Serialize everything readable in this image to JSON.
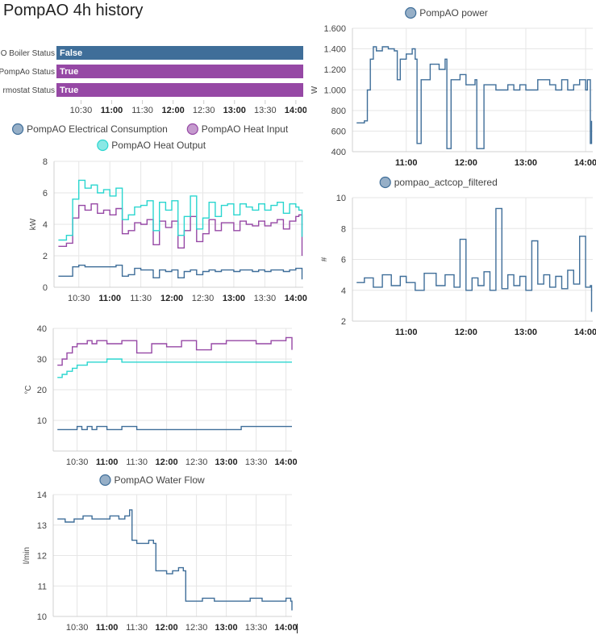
{
  "page": {
    "title": "PompAO 4h history"
  },
  "colors": {
    "blue": "#3f6e99",
    "purple": "#9648a5",
    "cyan": "#2ad6cf"
  },
  "status": {
    "rows": [
      {
        "label": "O Boiler Status",
        "value": "False",
        "color": "#3f6e99"
      },
      {
        "label": "PompAo Status",
        "value": "True",
        "color": "#9648a5"
      },
      {
        "label": "rmostat Status",
        "value": "True",
        "color": "#9648a5"
      }
    ],
    "x_ticks": [
      "10:30",
      "11:00",
      "11:30",
      "12:00",
      "12:30",
      "13:00",
      "13:30",
      "14:00"
    ]
  },
  "chart_data": [
    {
      "id": "energy",
      "type": "line",
      "legend": [
        "PompAO Electrical Consumption",
        "PompAO Heat Input",
        "PompAO Heat Output"
      ],
      "ylabel": "kW",
      "ylim": [
        0,
        8
      ],
      "yticks": [
        0,
        2,
        4,
        6,
        8
      ],
      "x_ticks": [
        "10:30",
        "11:00",
        "11:30",
        "12:00",
        "12:30",
        "13:00",
        "13:30",
        "14:00"
      ],
      "x_hours": [
        10.17,
        10.3,
        10.4,
        10.5,
        10.6,
        10.7,
        10.8,
        10.9,
        11.0,
        11.1,
        11.2,
        11.3,
        11.4,
        11.5,
        11.6,
        11.7,
        11.8,
        11.9,
        12.0,
        12.1,
        12.2,
        12.3,
        12.4,
        12.5,
        12.6,
        12.7,
        12.8,
        12.9,
        13.0,
        13.1,
        13.2,
        13.3,
        13.4,
        13.5,
        13.6,
        13.7,
        13.8,
        13.9,
        14.0,
        14.05,
        14.1
      ],
      "series": [
        {
          "name": "PompAO Electrical Consumption",
          "color": "#3f6e99",
          "values": [
            0.7,
            0.7,
            1.3,
            1.4,
            1.3,
            1.3,
            1.3,
            1.3,
            1.3,
            1.4,
            0.7,
            0.8,
            1.2,
            1.1,
            1.1,
            0.6,
            1.1,
            1.0,
            1.1,
            0.6,
            1.0,
            1.1,
            0.8,
            1.0,
            1.1,
            1.0,
            1.1,
            1.1,
            1.0,
            1.1,
            1.1,
            1.0,
            1.1,
            1.0,
            1.1,
            1.1,
            1.0,
            1.1,
            1.2,
            1.2,
            0.5
          ]
        },
        {
          "name": "PompAO Heat Input",
          "color": "#9648a5",
          "values": [
            2.6,
            2.8,
            4.4,
            5.2,
            4.9,
            5.3,
            4.7,
            4.9,
            4.6,
            5.0,
            3.4,
            3.6,
            4.1,
            4.0,
            4.3,
            2.7,
            4.2,
            3.8,
            4.2,
            2.5,
            3.6,
            4.5,
            2.9,
            3.4,
            4.3,
            3.6,
            4.1,
            4.1,
            3.6,
            4.2,
            4.0,
            3.9,
            4.2,
            3.9,
            4.1,
            4.3,
            3.7,
            4.2,
            4.5,
            4.6,
            2.0
          ]
        },
        {
          "name": "PompAO Heat Output",
          "color": "#2ad6cf",
          "values": [
            3.0,
            3.3,
            5.6,
            6.8,
            6.3,
            6.5,
            6.0,
            6.2,
            5.8,
            6.3,
            4.3,
            4.6,
            5.1,
            5.2,
            5.5,
            3.6,
            5.4,
            4.9,
            5.5,
            3.3,
            4.5,
            5.8,
            3.7,
            4.4,
            5.4,
            4.5,
            5.2,
            5.3,
            4.6,
            5.3,
            5.1,
            4.9,
            5.3,
            4.9,
            5.2,
            5.4,
            4.7,
            5.3,
            5.1,
            4.9,
            3.2
          ]
        }
      ]
    },
    {
      "id": "temperature",
      "type": "line",
      "legend": [],
      "ylabel": "°C",
      "ylim": [
        0,
        40
      ],
      "yticks": [
        10,
        20,
        30,
        40
      ],
      "x_ticks": [
        "10:30",
        "11:00",
        "11:30",
        "12:00",
        "12:30",
        "13:00",
        "13:30",
        "14:00"
      ],
      "x_hours": [
        10.17,
        10.25,
        10.33,
        10.42,
        10.5,
        10.58,
        10.67,
        10.75,
        10.83,
        11.0,
        11.25,
        11.5,
        11.75,
        12.0,
        12.25,
        12.5,
        12.75,
        13.0,
        13.25,
        13.5,
        13.75,
        14.0,
        14.1
      ],
      "series": [
        {
          "name": "",
          "color": "#9648a5",
          "values": [
            28,
            30,
            32,
            34,
            35,
            35,
            36,
            35,
            36,
            35,
            36,
            32,
            35,
            34,
            36,
            33,
            35,
            36,
            36,
            35,
            36,
            37,
            33
          ]
        },
        {
          "name": "",
          "color": "#2ad6cf",
          "values": [
            24,
            25,
            26,
            27,
            28,
            28,
            29,
            29,
            29,
            30,
            29,
            29,
            29,
            29,
            29,
            29,
            29,
            29,
            29,
            29,
            29,
            29,
            29
          ]
        },
        {
          "name": "",
          "color": "#3f6e99",
          "values": [
            7,
            7,
            7,
            7,
            8,
            7,
            8,
            7,
            8,
            7,
            8,
            7,
            7,
            7,
            7,
            7,
            7,
            7,
            8,
            8,
            8,
            8,
            8
          ]
        }
      ]
    },
    {
      "id": "water-flow",
      "type": "line",
      "legend": [
        "PompAO Water Flow"
      ],
      "ylabel": "l/min",
      "ylim": [
        10,
        14
      ],
      "yticks": [
        10,
        11,
        12,
        13,
        14
      ],
      "x_ticks": [
        "10:30",
        "11:00",
        "11:30",
        "12:00",
        "12:30",
        "13:00",
        "13:30",
        "14:00"
      ],
      "x_hours": [
        10.17,
        10.3,
        10.45,
        10.6,
        10.75,
        10.9,
        11.05,
        11.2,
        11.3,
        11.38,
        11.42,
        11.5,
        11.6,
        11.7,
        11.78,
        11.82,
        11.9,
        12.0,
        12.1,
        12.2,
        12.28,
        12.32,
        12.4,
        12.6,
        12.8,
        13.0,
        13.2,
        13.4,
        13.6,
        13.8,
        14.0,
        14.08,
        14.1
      ],
      "series": [
        {
          "name": "PompAO Water Flow",
          "color": "#3f6e99",
          "values": [
            13.2,
            13.1,
            13.2,
            13.3,
            13.2,
            13.2,
            13.3,
            13.2,
            13.3,
            13.5,
            12.5,
            12.4,
            12.4,
            12.5,
            12.4,
            11.5,
            11.5,
            11.4,
            11.5,
            11.6,
            11.5,
            10.5,
            10.5,
            10.6,
            10.5,
            10.5,
            10.5,
            10.6,
            10.5,
            10.5,
            10.6,
            10.5,
            10.2
          ]
        }
      ]
    },
    {
      "id": "power",
      "type": "line",
      "legend": [
        "PompAO power"
      ],
      "ylabel": "W",
      "ylim": [
        400,
        1600
      ],
      "yticks": [
        400,
        600,
        800,
        1000,
        1200,
        1400,
        1600
      ],
      "ytick_labels": [
        "400",
        "600",
        "800",
        "1.000",
        "1.200",
        "1.400",
        "1.600"
      ],
      "x_ticks": [
        "11:00",
        "12:00",
        "13:00",
        "14:00"
      ],
      "x_hours": [
        10.17,
        10.3,
        10.35,
        10.4,
        10.45,
        10.5,
        10.6,
        10.7,
        10.8,
        10.85,
        10.9,
        11.0,
        11.1,
        11.15,
        11.18,
        11.25,
        11.4,
        11.55,
        11.65,
        11.68,
        11.75,
        11.9,
        12.0,
        12.15,
        12.18,
        12.3,
        12.5,
        12.7,
        12.8,
        12.9,
        13.0,
        13.2,
        13.4,
        13.5,
        13.6,
        13.7,
        13.8,
        13.9,
        14.0,
        14.03,
        14.08,
        14.1
      ],
      "series": [
        {
          "name": "PompAO power",
          "color": "#3f6e99",
          "values": [
            680,
            700,
            1000,
            1300,
            1420,
            1380,
            1420,
            1400,
            1380,
            1100,
            1300,
            1350,
            1400,
            1300,
            480,
            1100,
            1250,
            1200,
            1300,
            430,
            1100,
            1150,
            1050,
            1100,
            430,
            1050,
            1000,
            1050,
            1000,
            1050,
            1000,
            1100,
            1050,
            1000,
            1100,
            1000,
            1050,
            1100,
            1000,
            1100,
            480,
            700
          ]
        }
      ]
    },
    {
      "id": "cop",
      "type": "line",
      "legend": [
        "pompao_actcop_filtered"
      ],
      "ylabel": "#",
      "ylim": [
        2,
        10
      ],
      "yticks": [
        2,
        4,
        6,
        8,
        10
      ],
      "x_ticks": [
        "11:00",
        "12:00",
        "13:00",
        "14:00"
      ],
      "x_hours": [
        10.17,
        10.3,
        10.45,
        10.6,
        10.75,
        10.9,
        11.0,
        11.15,
        11.3,
        11.5,
        11.65,
        11.8,
        11.9,
        12.0,
        12.1,
        12.2,
        12.3,
        12.4,
        12.5,
        12.6,
        12.7,
        12.8,
        12.9,
        13.0,
        13.1,
        13.2,
        13.3,
        13.4,
        13.5,
        13.6,
        13.7,
        13.8,
        13.9,
        14.0,
        14.08,
        14.1
      ],
      "series": [
        {
          "name": "pompao_actcop_filtered",
          "color": "#3f6e99",
          "values": [
            4.5,
            4.8,
            4.2,
            5.0,
            4.3,
            4.9,
            4.5,
            4.0,
            5.1,
            4.3,
            5.0,
            4.2,
            7.3,
            4.0,
            4.8,
            4.3,
            5.2,
            4.0,
            9.3,
            4.1,
            5.0,
            4.3,
            4.9,
            4.0,
            7.2,
            4.4,
            5.0,
            4.2,
            4.9,
            4.1,
            5.3,
            4.4,
            7.5,
            4.2,
            4.3,
            2.6
          ]
        }
      ]
    }
  ]
}
